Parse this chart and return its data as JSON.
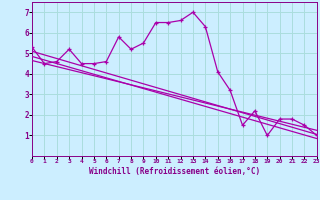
{
  "bg_color": "#cceeff",
  "grid_color": "#aadddd",
  "line_color": "#aa00aa",
  "xlabel": "Windchill (Refroidissement éolien,°C)",
  "xlim": [
    0,
    23
  ],
  "ylim": [
    0,
    7.5
  ],
  "yticks": [
    1,
    2,
    3,
    4,
    5,
    6,
    7
  ],
  "xticks": [
    0,
    1,
    2,
    3,
    4,
    5,
    6,
    7,
    8,
    9,
    10,
    11,
    12,
    13,
    14,
    15,
    16,
    17,
    18,
    19,
    20,
    21,
    22,
    23
  ],
  "series1_x": [
    0,
    1,
    2,
    3,
    4,
    5,
    6,
    7,
    8,
    9,
    10,
    11,
    12,
    13,
    14,
    15,
    16,
    17,
    18,
    19,
    20,
    21,
    22,
    23
  ],
  "series1_y": [
    5.3,
    4.5,
    4.6,
    5.2,
    4.5,
    4.5,
    4.6,
    5.8,
    5.2,
    5.5,
    6.5,
    6.5,
    6.6,
    7.0,
    6.3,
    4.1,
    3.2,
    1.5,
    2.2,
    1.0,
    1.8,
    1.8,
    1.5,
    1.0
  ],
  "trend1_x": [
    0,
    23
  ],
  "trend1_y": [
    5.1,
    1.05
  ],
  "trend2_x": [
    0,
    23
  ],
  "trend2_y": [
    4.85,
    0.85
  ],
  "trend3_x": [
    0,
    23
  ],
  "trend3_y": [
    4.65,
    1.25
  ]
}
